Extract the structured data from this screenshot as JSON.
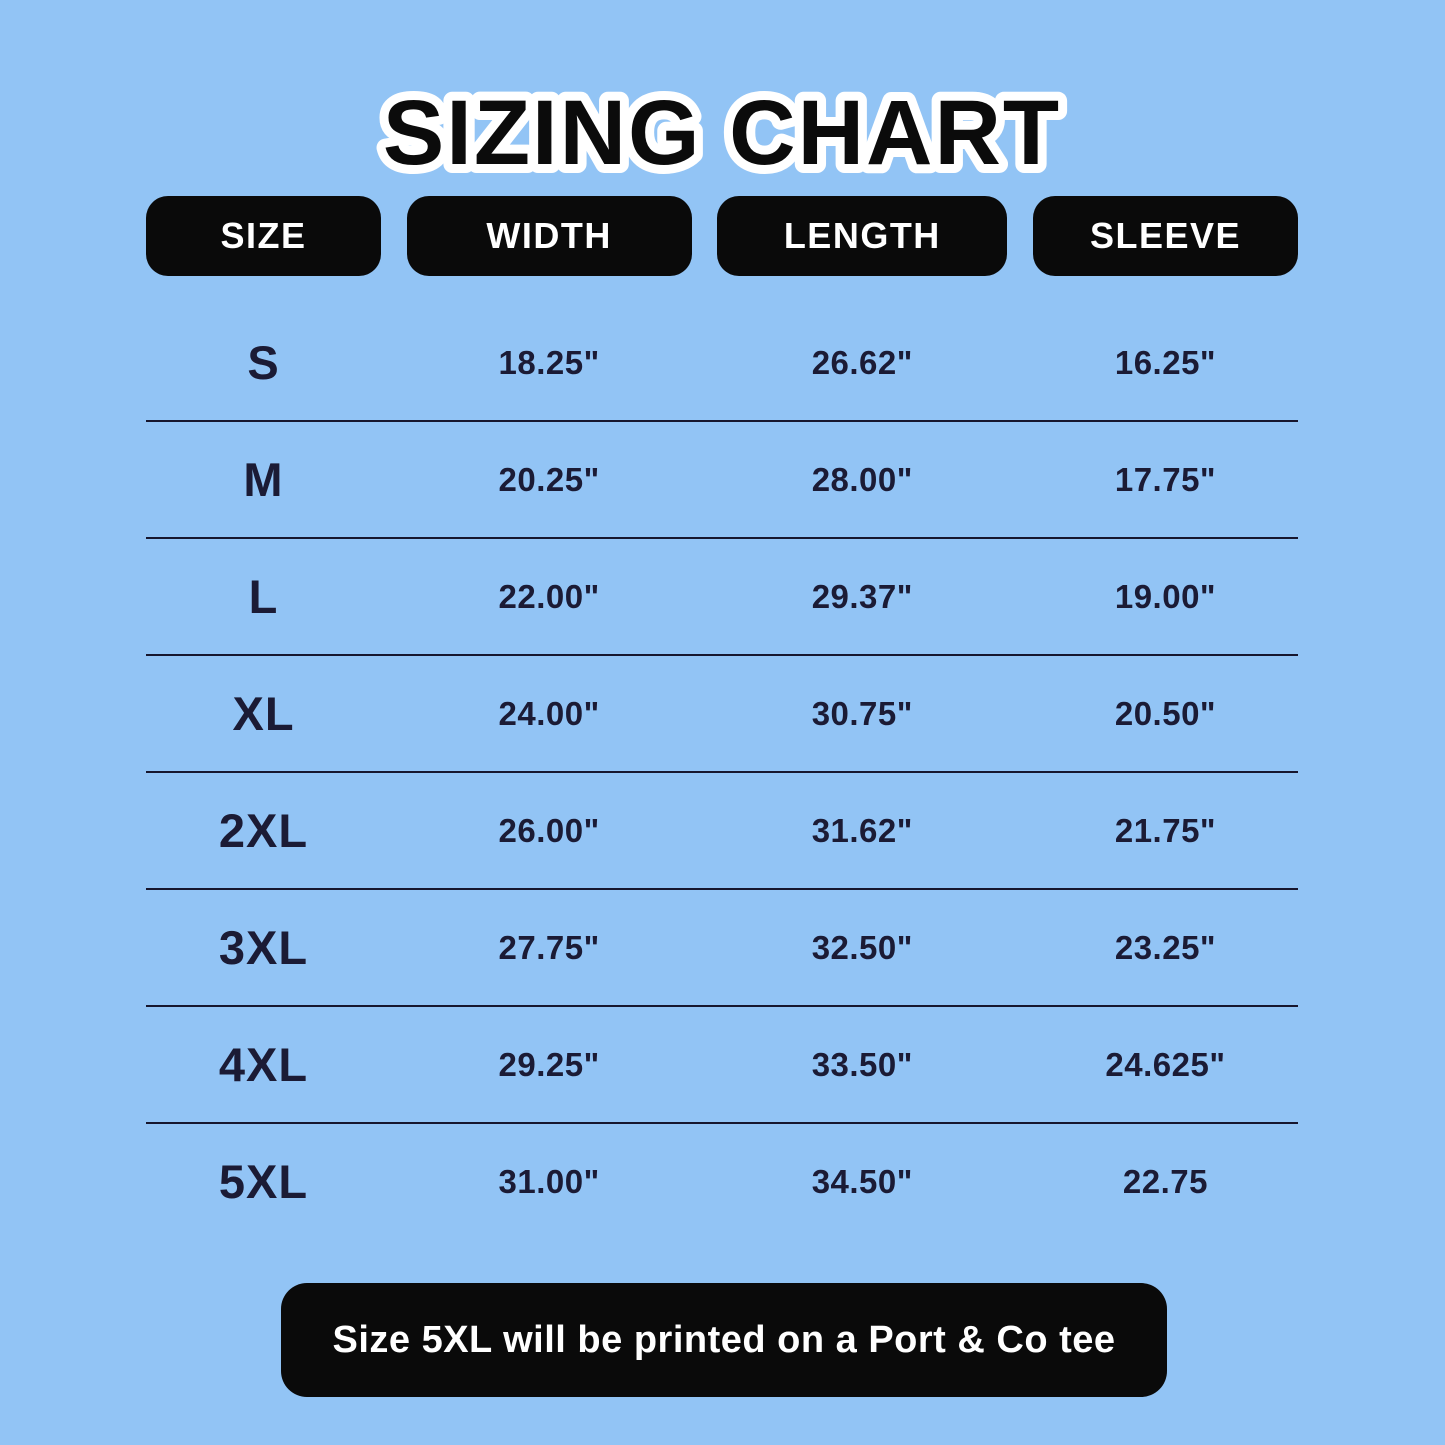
{
  "title": "SIZING CHART",
  "table": {
    "headers": {
      "size": "SIZE",
      "width": "WIDTH",
      "length": "LENGTH",
      "sleeve": "SLEEVE"
    },
    "rows": [
      {
        "size": "S",
        "width": "18.25\"",
        "length": "26.62\"",
        "sleeve": "16.25\""
      },
      {
        "size": "M",
        "width": "20.25\"",
        "length": "28.00\"",
        "sleeve": "17.75\""
      },
      {
        "size": "L",
        "width": "22.00\"",
        "length": "29.37\"",
        "sleeve": "19.00\""
      },
      {
        "size": "XL",
        "width": "24.00\"",
        "length": "30.75\"",
        "sleeve": "20.50\""
      },
      {
        "size": "2XL",
        "width": "26.00\"",
        "length": "31.62\"",
        "sleeve": "21.75\""
      },
      {
        "size": "3XL",
        "width": "27.75\"",
        "length": "32.50\"",
        "sleeve": "23.25\""
      },
      {
        "size": "4XL",
        "width": "29.25\"",
        "length": "33.50\"",
        "sleeve": "24.625\""
      },
      {
        "size": "5XL",
        "width": "31.00\"",
        "length": "34.50\"",
        "sleeve": "22.75"
      }
    ]
  },
  "note": "Size 5XL will be printed on a Port & Co tee",
  "colors": {
    "background": "#92C4F5",
    "pill": "#0A0A0A",
    "text_dark": "#1B1B35",
    "text_light": "#FFFFFF",
    "divider": "#16162E"
  },
  "chart_data": {
    "type": "table",
    "title": "SIZING CHART",
    "columns": [
      "SIZE",
      "WIDTH",
      "LENGTH",
      "SLEEVE"
    ],
    "rows": [
      [
        "S",
        "18.25\"",
        "26.62\"",
        "16.25\""
      ],
      [
        "M",
        "20.25\"",
        "28.00\"",
        "17.75\""
      ],
      [
        "L",
        "22.00\"",
        "29.37\"",
        "19.00\""
      ],
      [
        "XL",
        "24.00\"",
        "30.75\"",
        "20.50\""
      ],
      [
        "2XL",
        "26.00\"",
        "31.62\"",
        "21.75\""
      ],
      [
        "3XL",
        "27.75\"",
        "32.50\"",
        "23.25\""
      ],
      [
        "4XL",
        "29.25\"",
        "33.50\"",
        "24.625\""
      ],
      [
        "5XL",
        "31.00\"",
        "34.50\"",
        "22.75"
      ]
    ],
    "footnote": "Size 5XL will be printed on a Port & Co tee",
    "units": "inches"
  }
}
